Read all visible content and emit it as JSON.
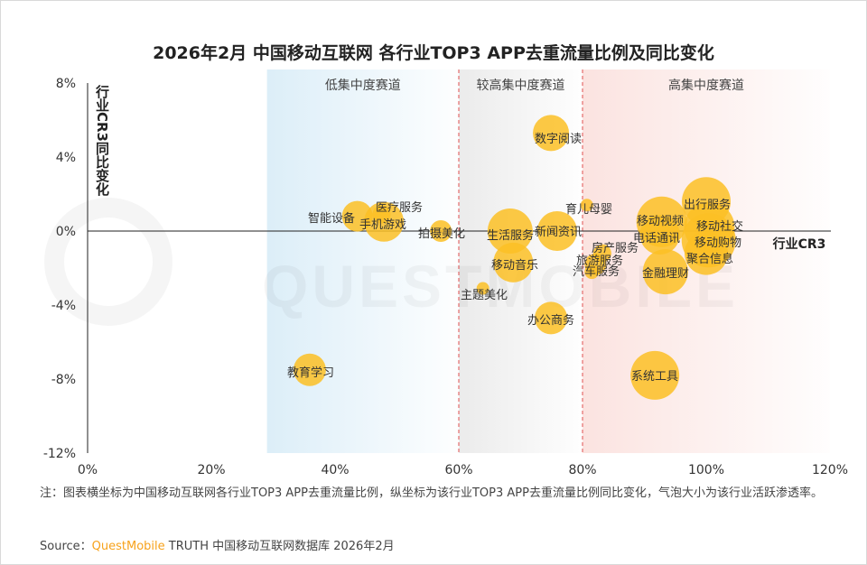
{
  "title": "2026年2月 中国移动互联网 各行业TOP3 APP去重流量比例及同比变化",
  "chart_data": {
    "type": "scatter",
    "subtype": "bubble",
    "title": "2026年2月 中国移动互联网 各行业TOP3 APP去重流量比例及同比变化",
    "xlabel": "行业CR3",
    "ylabel": "行业CR3同比变化",
    "xlim": [
      0,
      120
    ],
    "ylim": [
      -12,
      8
    ],
    "x_ticks": [
      "0%",
      "20%",
      "40%",
      "60%",
      "80%",
      "100%",
      "120%"
    ],
    "y_ticks": [
      "8%",
      "4%",
      "0%",
      "-4%",
      "-8%",
      "-12%"
    ],
    "grid": false,
    "bubble_color": "#fbbf24",
    "zones": [
      {
        "label": "低集中度赛道",
        "from": 29,
        "to": 60,
        "color": "#dceef8"
      },
      {
        "label": "较高集中度赛道",
        "from": 60,
        "to": 80,
        "color": "#ebebeb"
      },
      {
        "label": "高集中度赛道",
        "from": 80,
        "to": 120,
        "color": "#fbe3e0"
      }
    ],
    "zone_divider_color": "#e05050",
    "points": [
      {
        "label": "数字阅读",
        "x": 74.9,
        "y": 5.3,
        "size": 20
      },
      {
        "label": "智能设备",
        "x": 43.6,
        "y": 0.8,
        "size": 17
      },
      {
        "label": "医疗服务",
        "x": 47.5,
        "y": 0.9,
        "size": 10
      },
      {
        "label": "手机游戏",
        "x": 47.9,
        "y": 0.5,
        "size": 22
      },
      {
        "label": "拍摄美化",
        "x": 57.1,
        "y": 0.0,
        "size": 12
      },
      {
        "label": "生活服务",
        "x": 68.3,
        "y": 0.0,
        "size": 25
      },
      {
        "label": "新闻资讯",
        "x": 75.9,
        "y": 0.0,
        "size": 22
      },
      {
        "label": "育儿母婴",
        "x": 80.7,
        "y": 1.4,
        "size": 7
      },
      {
        "label": "移动音乐",
        "x": 68.8,
        "y": -1.7,
        "size": 22
      },
      {
        "label": "主题美化",
        "x": 63.9,
        "y": -3.1,
        "size": 7
      },
      {
        "label": "办公商务",
        "x": 74.9,
        "y": -4.7,
        "size": 18
      },
      {
        "label": "房产服务",
        "x": 83.2,
        "y": -1.2,
        "size": 10
      },
      {
        "label": "旅游服务",
        "x": 82.1,
        "y": -1.8,
        "size": 12
      },
      {
        "label": "汽车服务",
        "x": 81.5,
        "y": -2.2,
        "size": 8
      },
      {
        "label": "移动视频",
        "x": 92.8,
        "y": 0.5,
        "size": 28
      },
      {
        "label": "电话通讯",
        "x": 92.5,
        "y": -0.2,
        "size": 22
      },
      {
        "label": "出行服务",
        "x": 100.0,
        "y": 1.6,
        "size": 27
      },
      {
        "label": "移动社交",
        "x": 100.5,
        "y": 0.2,
        "size": 28
      },
      {
        "label": "移动购物",
        "x": 100.4,
        "y": -0.5,
        "size": 30
      },
      {
        "label": "聚合信息",
        "x": 100.0,
        "y": -1.2,
        "size": 24
      },
      {
        "label": "金融理财",
        "x": 93.4,
        "y": -2.2,
        "size": 25
      },
      {
        "label": "系统工具",
        "x": 91.7,
        "y": -7.8,
        "size": 27
      },
      {
        "label": "教育学习",
        "x": 35.9,
        "y": -7.5,
        "size": 18
      }
    ]
  },
  "watermark": "QUESTMOBILE",
  "note": "注：图表横坐标为中国移动互联网各行业TOP3 APP去重流量比例，纵坐标为该行业TOP3 APP去重流量比例同比变化，气泡大小为该行业活跃渗透率。",
  "source": {
    "prefix": "Source：",
    "brand": "QuestMobile",
    "rest": " TRUTH 中国移动互联网数据库 2026年2月"
  }
}
